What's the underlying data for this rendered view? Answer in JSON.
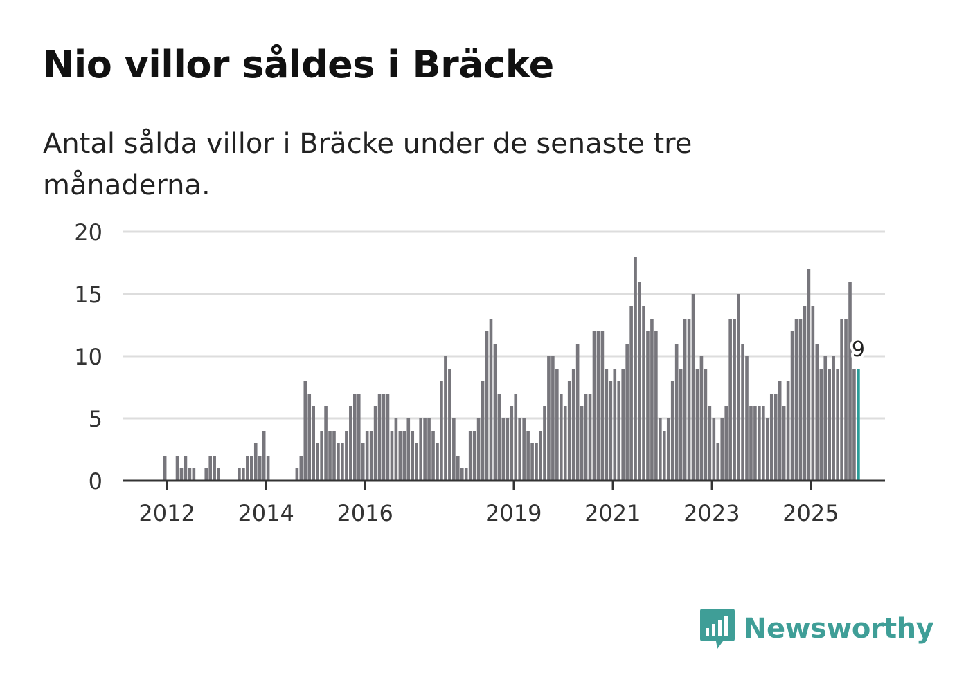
{
  "title": "Nio villor såldes i Bräcke",
  "subtitle": "Antal sålda villor i Bräcke under de senaste tre månaderna.",
  "brand": {
    "name": "Newsworthy",
    "icon": "bar-chart-speech-bubble-icon",
    "color": "#3f9e97"
  },
  "colors": {
    "bar": "#77767c",
    "highlight": "#2a9d99",
    "grid": "#dddddd",
    "axis": "#333333"
  },
  "chart_data": {
    "type": "bar",
    "title": "Nio villor såldes i Bräcke",
    "xlabel": "",
    "ylabel": "",
    "ylim": [
      0,
      20
    ],
    "yticks": [
      0,
      5,
      10,
      15,
      20
    ],
    "grid": true,
    "start_month": "2011-03",
    "xticks": [
      {
        "label": "2012",
        "index": 10
      },
      {
        "label": "2014",
        "index": 34
      },
      {
        "label": "2016",
        "index": 58
      },
      {
        "label": "2019",
        "index": 94
      },
      {
        "label": "2021",
        "index": 118
      },
      {
        "label": "2023",
        "index": 142
      },
      {
        "label": "2025",
        "index": 166
      }
    ],
    "values": [
      0,
      0,
      0,
      0,
      0,
      0,
      0,
      0,
      0,
      2,
      0,
      0,
      2,
      1,
      2,
      1,
      1,
      0,
      0,
      1,
      2,
      2,
      1,
      0,
      0,
      0,
      0,
      1,
      1,
      2,
      2,
      3,
      2,
      4,
      2,
      0,
      0,
      0,
      0,
      0,
      0,
      1,
      2,
      8,
      7,
      6,
      3,
      4,
      6,
      4,
      4,
      3,
      3,
      4,
      6,
      7,
      7,
      3,
      4,
      4,
      6,
      7,
      7,
      7,
      4,
      5,
      4,
      4,
      5,
      4,
      3,
      5,
      5,
      5,
      4,
      3,
      8,
      10,
      9,
      5,
      2,
      1,
      1,
      4,
      4,
      5,
      8,
      12,
      13,
      11,
      7,
      5,
      5,
      6,
      7,
      5,
      5,
      4,
      3,
      3,
      4,
      6,
      10,
      10,
      9,
      7,
      6,
      8,
      9,
      11,
      6,
      7,
      7,
      12,
      12,
      12,
      9,
      8,
      9,
      8,
      9,
      11,
      14,
      18,
      16,
      14,
      12,
      13,
      12,
      5,
      4,
      5,
      8,
      11,
      9,
      13,
      13,
      15,
      9,
      10,
      9,
      6,
      5,
      3,
      5,
      6,
      13,
      13,
      15,
      11,
      10,
      6,
      6,
      6,
      6,
      5,
      7,
      7,
      8,
      6,
      8,
      12,
      13,
      13,
      14,
      17,
      14,
      11,
      9,
      10,
      9,
      10,
      9,
      13,
      13,
      16,
      9,
      9
    ],
    "highlight_index": 177,
    "highlight_label": "9"
  }
}
